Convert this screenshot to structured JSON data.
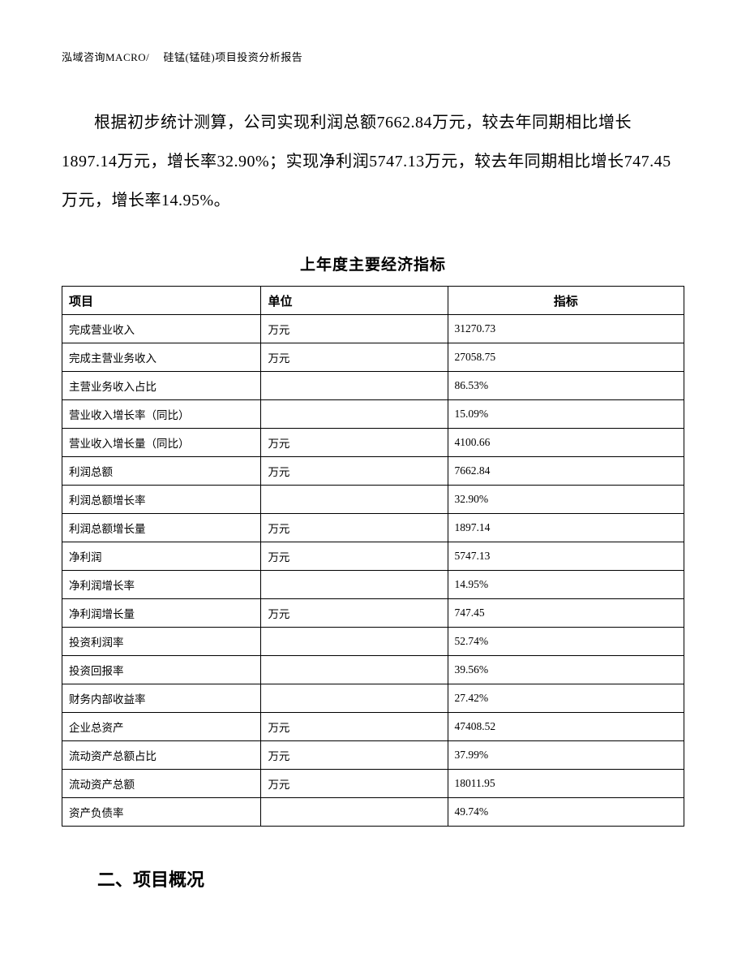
{
  "header": {
    "text": "泓域咨询MACRO/　 硅锰(锰硅)项目投资分析报告"
  },
  "paragraph": {
    "text": "根据初步统计测算，公司实现利润总额7662.84万元，较去年同期相比增长1897.14万元，增长率32.90%；实现净利润5747.13万元，较去年同期相比增长747.45万元，增长率14.95%。"
  },
  "table": {
    "title": "上年度主要经济指标",
    "columns": [
      "项目",
      "单位",
      "指标"
    ],
    "rows": [
      [
        "完成营业收入",
        "万元",
        "31270.73"
      ],
      [
        "完成主营业务收入",
        "万元",
        "27058.75"
      ],
      [
        "主营业务收入占比",
        "",
        "86.53%"
      ],
      [
        "营业收入增长率（同比）",
        "",
        "15.09%"
      ],
      [
        "营业收入增长量（同比）",
        "万元",
        "4100.66"
      ],
      [
        "利润总额",
        "万元",
        "7662.84"
      ],
      [
        "利润总额增长率",
        "",
        "32.90%"
      ],
      [
        "利润总额增长量",
        "万元",
        "1897.14"
      ],
      [
        "净利润",
        "万元",
        "5747.13"
      ],
      [
        "净利润增长率",
        "",
        "14.95%"
      ],
      [
        "净利润增长量",
        "万元",
        "747.45"
      ],
      [
        "投资利润率",
        "",
        "52.74%"
      ],
      [
        "投资回报率",
        "",
        "39.56%"
      ],
      [
        "财务内部收益率",
        "",
        "27.42%"
      ],
      [
        "企业总资产",
        "万元",
        "47408.52"
      ],
      [
        "流动资产总额占比",
        "万元",
        "37.99%"
      ],
      [
        "流动资产总额",
        "万元",
        "18011.95"
      ],
      [
        "资产负债率",
        "",
        "49.74%"
      ]
    ]
  },
  "section_heading": {
    "text": "二、项目概况"
  }
}
